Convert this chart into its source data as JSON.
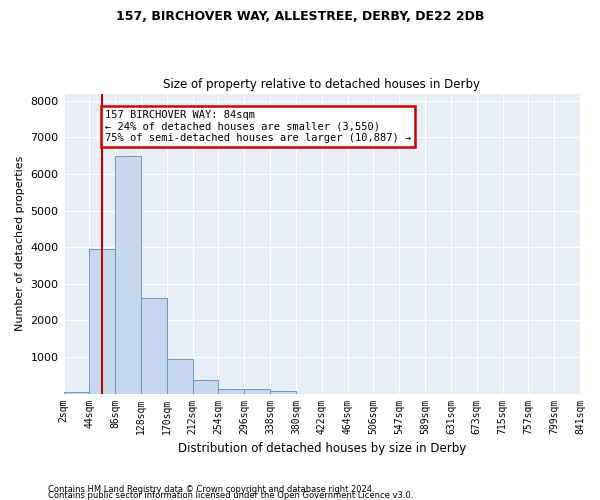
{
  "title1": "157, BIRCHOVER WAY, ALLESTREE, DERBY, DE22 2DB",
  "title2": "Size of property relative to detached houses in Derby",
  "xlabel": "Distribution of detached houses by size in Derby",
  "ylabel": "Number of detached properties",
  "footnote1": "Contains HM Land Registry data © Crown copyright and database right 2024.",
  "footnote2": "Contains public sector information licensed under the Open Government Licence v3.0.",
  "annotation_line1": "157 BIRCHOVER WAY: 84sqm",
  "annotation_line2": "← 24% of detached houses are smaller (3,550)",
  "annotation_line3": "75% of semi-detached houses are larger (10,887) →",
  "bar_values": [
    40,
    3950,
    6500,
    2600,
    950,
    380,
    120,
    120,
    60,
    0,
    0,
    0,
    0,
    0,
    0,
    0,
    0,
    0,
    0,
    0
  ],
  "tick_labels": [
    "2sqm",
    "44sqm",
    "86sqm",
    "128sqm",
    "170sqm",
    "212sqm",
    "254sqm",
    "296sqm",
    "338sqm",
    "380sqm",
    "422sqm",
    "464sqm",
    "506sqm",
    "547sqm",
    "589sqm",
    "631sqm",
    "673sqm",
    "715sqm",
    "757sqm",
    "799sqm",
    "841sqm"
  ],
  "bar_color": "#c5d8ef",
  "bar_edge_color": "#5b8db8",
  "bg_color": "#e8eef6",
  "grid_color": "#ffffff",
  "vline_color": "#cc0000",
  "vline_position": 1.5,
  "annotation_box_facecolor": "#ffffff",
  "annotation_box_edgecolor": "#cc0000",
  "ylim": [
    0,
    8200
  ],
  "yticks": [
    0,
    1000,
    2000,
    3000,
    4000,
    5000,
    6000,
    7000,
    8000
  ]
}
